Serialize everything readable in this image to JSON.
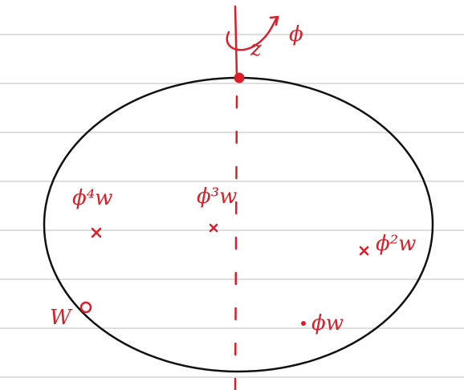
{
  "labels": {
    "axis": "z",
    "rotation": "ϕ",
    "left": "ϕ⁴w",
    "center": "ϕ³w",
    "right": "ϕ²w",
    "point": "W",
    "lower_right": "ϕw"
  }
}
